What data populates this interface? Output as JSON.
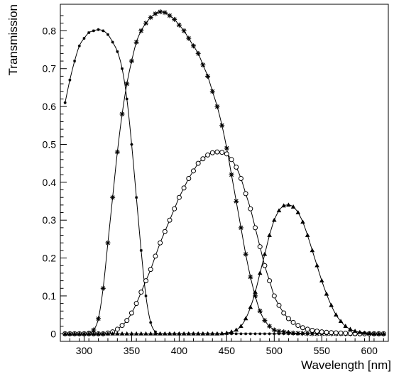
{
  "chart_data": {
    "type": "line",
    "title": "",
    "xlabel": "Wavelength [nm]",
    "ylabel": "Transmission",
    "xlim": [
      275,
      620
    ],
    "ylim": [
      -0.02,
      0.87
    ],
    "xticks": [
      300,
      350,
      400,
      450,
      500,
      550,
      600
    ],
    "yticks": [
      0,
      0.1,
      0.2,
      0.3,
      0.4,
      0.5,
      0.6,
      0.7,
      0.8
    ],
    "grid": false,
    "legend": "none",
    "series": [
      {
        "marker": "small-star",
        "x": [
          280,
          285,
          290,
          295,
          300,
          305,
          310,
          315,
          320,
          325,
          330,
          335,
          340,
          345,
          350,
          355,
          360,
          365,
          370,
          375,
          380,
          400,
          450,
          500,
          550,
          600,
          615
        ],
        "y": [
          0.61,
          0.67,
          0.72,
          0.76,
          0.78,
          0.795,
          0.8,
          0.803,
          0.8,
          0.79,
          0.77,
          0.745,
          0.7,
          0.62,
          0.5,
          0.36,
          0.22,
          0.1,
          0.03,
          0.005,
          0.0,
          0.0,
          0.0,
          0.0,
          0.0,
          0.0,
          0.0
        ]
      },
      {
        "marker": "asterisk",
        "x": [
          280,
          290,
          300,
          305,
          310,
          315,
          320,
          325,
          330,
          335,
          340,
          345,
          350,
          355,
          360,
          365,
          370,
          375,
          380,
          385,
          390,
          395,
          400,
          405,
          410,
          415,
          420,
          425,
          430,
          435,
          440,
          445,
          450,
          455,
          460,
          465,
          470,
          475,
          480,
          485,
          490,
          495,
          500,
          510,
          520,
          530,
          540,
          550,
          560,
          570,
          580,
          590,
          600,
          610,
          615
        ],
        "y": [
          0.0,
          0.0,
          0.0,
          0.002,
          0.01,
          0.04,
          0.12,
          0.24,
          0.36,
          0.48,
          0.58,
          0.66,
          0.72,
          0.77,
          0.8,
          0.82,
          0.835,
          0.845,
          0.85,
          0.848,
          0.84,
          0.83,
          0.815,
          0.8,
          0.78,
          0.76,
          0.74,
          0.71,
          0.68,
          0.64,
          0.6,
          0.55,
          0.49,
          0.42,
          0.35,
          0.28,
          0.21,
          0.15,
          0.1,
          0.06,
          0.035,
          0.02,
          0.01,
          0.005,
          0.002,
          0.001,
          0.0,
          0.0,
          0.0,
          0.0,
          0.0,
          0.0,
          0.0,
          0.0,
          0.0
        ]
      },
      {
        "marker": "open-circle",
        "x": [
          280,
          290,
          300,
          310,
          320,
          325,
          330,
          335,
          340,
          345,
          350,
          355,
          360,
          365,
          370,
          375,
          380,
          385,
          390,
          395,
          400,
          405,
          410,
          415,
          420,
          425,
          430,
          435,
          440,
          445,
          450,
          455,
          460,
          465,
          470,
          475,
          480,
          485,
          490,
          495,
          500,
          505,
          510,
          515,
          520,
          525,
          530,
          535,
          540,
          545,
          550,
          560,
          570,
          580,
          590,
          600,
          610,
          615
        ],
        "y": [
          0.0,
          0.0,
          0.0,
          0.0,
          0.0,
          0.002,
          0.005,
          0.012,
          0.022,
          0.035,
          0.055,
          0.08,
          0.11,
          0.14,
          0.17,
          0.205,
          0.24,
          0.27,
          0.3,
          0.33,
          0.36,
          0.385,
          0.41,
          0.43,
          0.45,
          0.462,
          0.472,
          0.478,
          0.48,
          0.479,
          0.475,
          0.46,
          0.44,
          0.41,
          0.37,
          0.33,
          0.28,
          0.23,
          0.18,
          0.14,
          0.1,
          0.075,
          0.055,
          0.04,
          0.03,
          0.022,
          0.016,
          0.012,
          0.009,
          0.007,
          0.005,
          0.003,
          0.002,
          0.001,
          0.0,
          0.0,
          0.0,
          0.0
        ]
      },
      {
        "marker": "filled-triangle",
        "x": [
          280,
          300,
          320,
          340,
          360,
          380,
          400,
          420,
          440,
          450,
          455,
          460,
          465,
          470,
          475,
          480,
          485,
          490,
          495,
          500,
          505,
          510,
          515,
          520,
          525,
          530,
          535,
          540,
          545,
          550,
          555,
          560,
          565,
          570,
          575,
          580,
          585,
          590,
          595,
          600,
          605,
          610,
          615
        ],
        "y": [
          0.0,
          0.0,
          0.0,
          0.0,
          0.0,
          0.0,
          0.0,
          0.0,
          0.0,
          0.002,
          0.005,
          0.01,
          0.02,
          0.04,
          0.07,
          0.11,
          0.16,
          0.21,
          0.26,
          0.3,
          0.325,
          0.338,
          0.34,
          0.335,
          0.32,
          0.295,
          0.26,
          0.22,
          0.18,
          0.14,
          0.105,
          0.075,
          0.05,
          0.033,
          0.02,
          0.012,
          0.007,
          0.004,
          0.002,
          0.001,
          0.0,
          0.0,
          0.0
        ]
      }
    ]
  }
}
